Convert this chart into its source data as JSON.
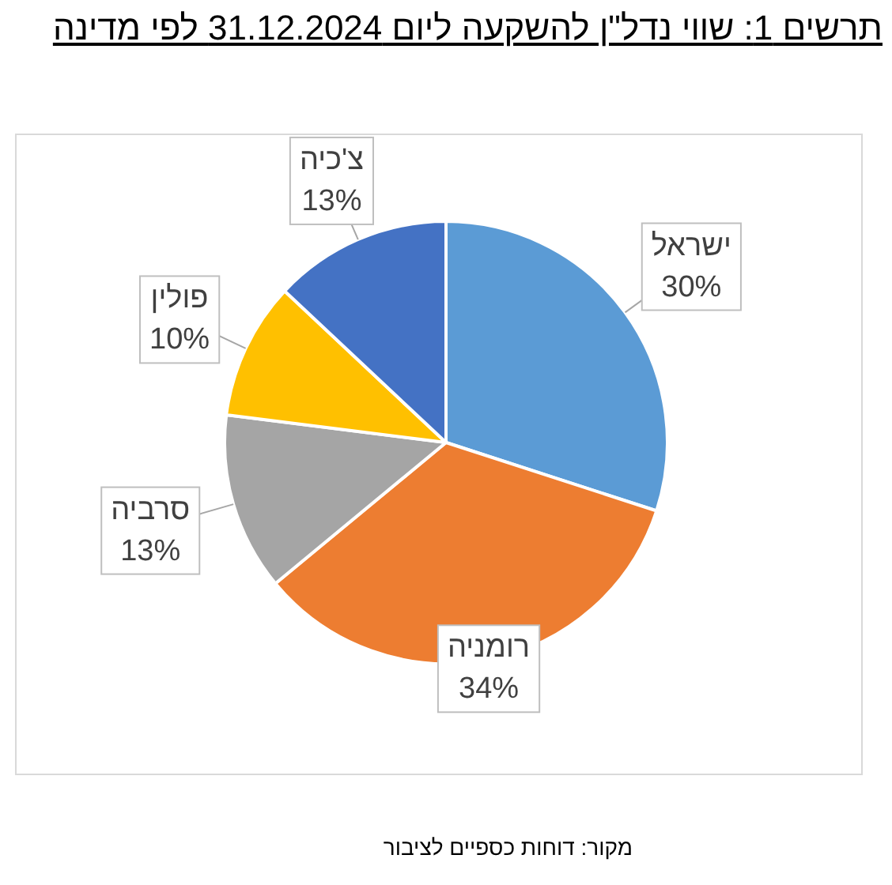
{
  "chart_data": {
    "type": "pie",
    "title": "תרשים 1: שווי נדל\"ן להשקעה ליום 31.12.2024 לפי מדינה",
    "categories": [
      "ישראל",
      "רומניה",
      "סרביה",
      "פולין",
      "צ'כיה"
    ],
    "values": [
      30,
      34,
      13,
      10,
      13
    ],
    "colors": [
      "#5b9bd5",
      "#ed7d31",
      "#a5a5a5",
      "#ffc000",
      "#4472c4"
    ],
    "value_labels": [
      "30%",
      "34%",
      "13%",
      "10%",
      "13%"
    ],
    "annotations": [
      "מקור: דוחות כספיים לציבור"
    ]
  }
}
